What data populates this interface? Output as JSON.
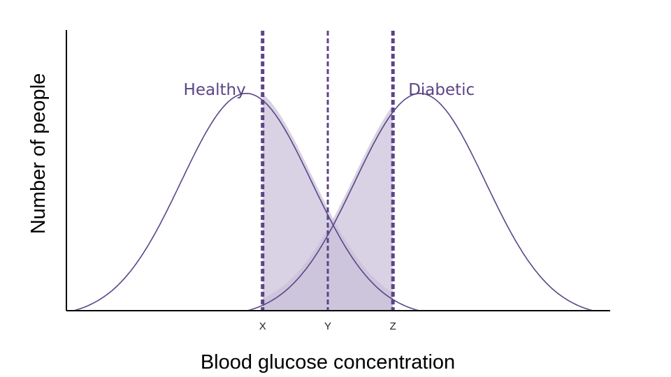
{
  "chart_data": {
    "type": "area",
    "xlabel": "Blood glucose concentration",
    "ylabel": "Number of people",
    "xlim": [
      0,
      10
    ],
    "ylim": [
      0,
      1.25
    ],
    "grid": false,
    "series": [
      {
        "name": "Healthy",
        "mean": 3.3,
        "sd": 1.2,
        "peak": 1.0
      },
      {
        "name": "Diabetic",
        "mean": 6.5,
        "sd": 1.2,
        "peak": 1.0
      }
    ],
    "thresholds": [
      {
        "label": "X",
        "x": 3.6
      },
      {
        "label": "Y",
        "x": 4.8
      },
      {
        "label": "Z",
        "x": 6.0
      }
    ],
    "shaded_regions": [
      {
        "series": "Healthy",
        "from": "X",
        "to": "Z"
      },
      {
        "series": "Diabetic",
        "from": "X",
        "to": "Z"
      }
    ],
    "colors": {
      "curve": "#5b4586",
      "fill": "#c8bfd9",
      "threshold": "#5b4586",
      "axis": "#000000"
    }
  }
}
